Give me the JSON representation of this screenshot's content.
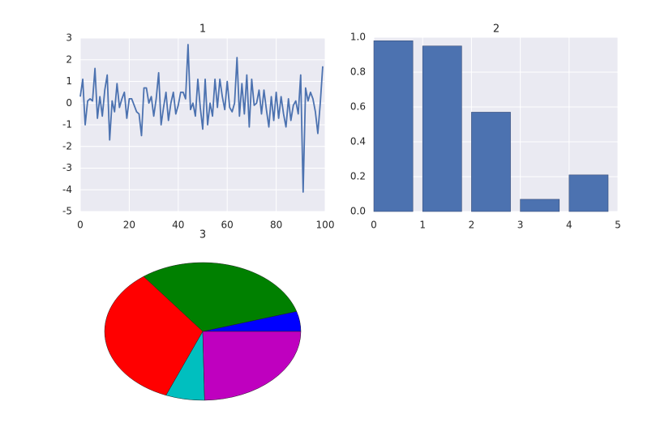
{
  "chart_data": [
    {
      "type": "line",
      "title": "1",
      "color": "#4c72b0",
      "x": [
        0,
        1,
        2,
        3,
        4,
        5,
        6,
        7,
        8,
        9,
        10,
        11,
        12,
        13,
        14,
        15,
        16,
        17,
        18,
        19,
        20,
        21,
        22,
        23,
        24,
        25,
        26,
        27,
        28,
        29,
        30,
        31,
        32,
        33,
        34,
        35,
        36,
        37,
        38,
        39,
        40,
        41,
        42,
        43,
        44,
        45,
        46,
        47,
        48,
        49,
        50,
        51,
        52,
        53,
        54,
        55,
        56,
        57,
        58,
        59,
        60,
        61,
        62,
        63,
        64,
        65,
        66,
        67,
        68,
        69,
        70,
        71,
        72,
        73,
        74,
        75,
        76,
        77,
        78,
        79,
        80,
        81,
        82,
        83,
        84,
        85,
        86,
        87,
        88,
        89,
        90,
        91,
        92,
        93,
        94,
        95,
        96,
        97,
        98,
        99
      ],
      "values": [
        0.3,
        1.1,
        -1.0,
        0.1,
        0.2,
        0.1,
        1.6,
        -0.7,
        0.3,
        -0.6,
        0.6,
        1.3,
        -1.7,
        0.1,
        -0.4,
        0.9,
        -0.2,
        0.2,
        0.5,
        -0.7,
        0.2,
        0.2,
        -0.1,
        -0.4,
        -0.5,
        -1.5,
        0.7,
        0.7,
        0.0,
        0.3,
        -0.6,
        0.2,
        1.4,
        -1.0,
        -0.2,
        0.5,
        -0.8,
        0.0,
        0.5,
        -0.5,
        -0.1,
        0.5,
        0.5,
        0.2,
        2.7,
        -0.3,
        0.0,
        -0.6,
        1.1,
        -0.2,
        -1.2,
        1.1,
        -1.0,
        0.0,
        -0.6,
        1.1,
        -0.2,
        1.1,
        0.3,
        -0.3,
        1.0,
        -0.2,
        -0.4,
        0.0,
        2.1,
        -0.6,
        0.9,
        -0.5,
        1.3,
        -1.1,
        1.1,
        -0.1,
        0.0,
        0.6,
        -0.5,
        0.6,
        -0.3,
        -1.1,
        0.3,
        -0.8,
        0.5,
        -0.7,
        0.3,
        -0.5,
        -1.1,
        0.2,
        -0.8,
        -0.1,
        0.1,
        -0.5,
        1.3,
        -4.1,
        0.7,
        0.1,
        0.5,
        0.2,
        -0.4,
        -1.4,
        0.0,
        1.7
      ],
      "xlim": [
        0,
        100
      ],
      "xticks": [
        0,
        20,
        40,
        60,
        80,
        100
      ],
      "ylim": [
        -5,
        3
      ],
      "yticks": [
        -5,
        -4,
        -3,
        -2,
        -1,
        0,
        1,
        2,
        3
      ],
      "grid": true
    },
    {
      "type": "bar",
      "title": "2",
      "color": "#4c72b0",
      "x": [
        0,
        1,
        2,
        3,
        4
      ],
      "width": 0.8,
      "values": [
        0.98,
        0.95,
        0.57,
        0.07,
        0.21
      ],
      "xlim": [
        0,
        5
      ],
      "xticks": [
        0,
        1,
        2,
        3,
        4,
        5
      ],
      "ylim": [
        0,
        1
      ],
      "yticks": [
        {
          "value": 0,
          "label": "0.0"
        },
        0.2,
        0.4,
        0.6,
        0.8,
        {
          "value": 1,
          "label": "1.0"
        }
      ],
      "grid": true
    },
    {
      "type": "pie",
      "title": "3",
      "values": [
        4.7,
        30.6,
        33.6,
        6.4,
        24.7
      ],
      "colors": [
        "#0000ff",
        "#008000",
        "#ff0000",
        "#00bfbf",
        "#bf00bf"
      ]
    }
  ]
}
